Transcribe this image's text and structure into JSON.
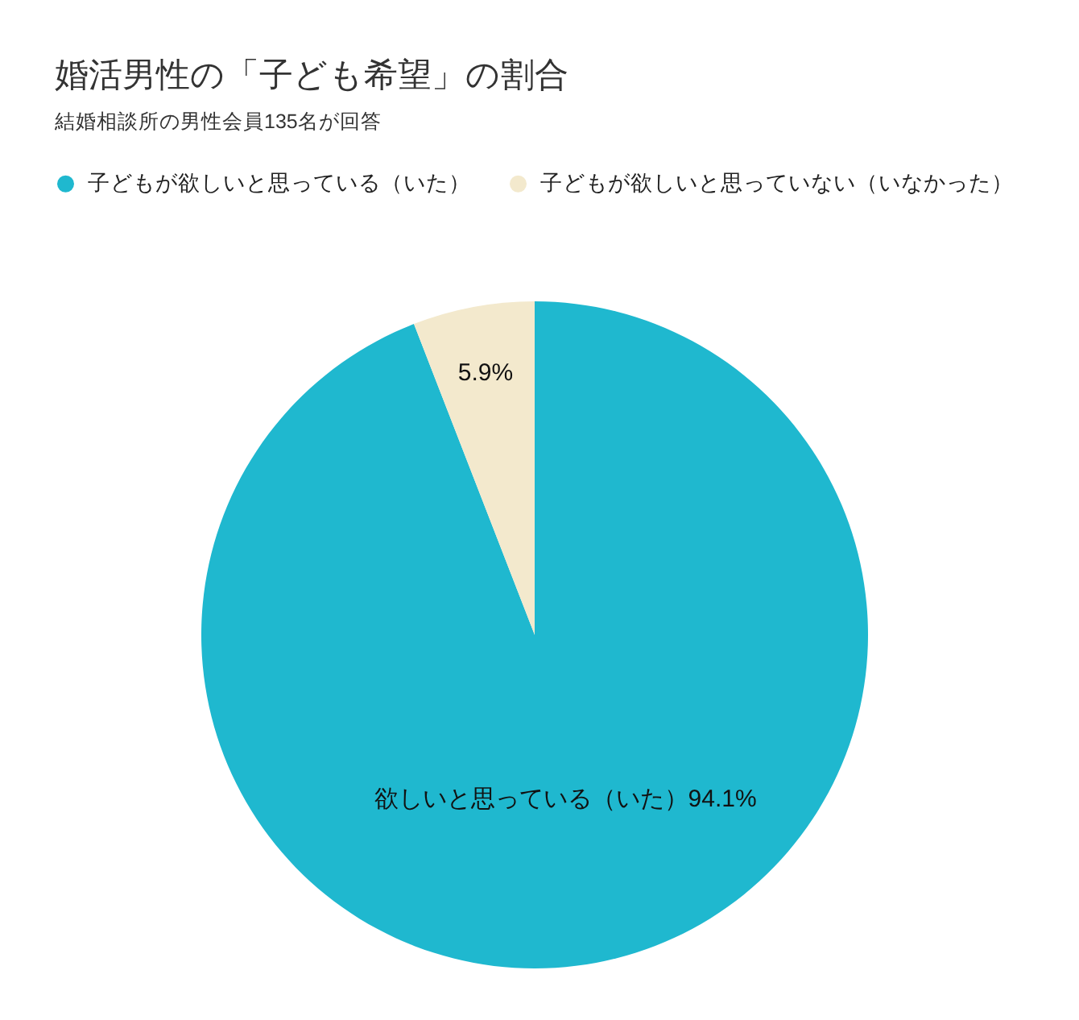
{
  "chart_data": {
    "type": "pie",
    "title": "婚活男性の「子ども希望」の割合",
    "subtitle": "結婚相談所の男性会員135名が回答",
    "categories": [
      "子どもが欲しいと思っている（いた）",
      "子どもが欲しいと思っていない（いなかった）"
    ],
    "values": [
      94.1,
      5.9
    ],
    "colors": [
      "#1fb8cf",
      "#f3e9cd"
    ],
    "value_labels": [
      "欲しいと思っている（いた）94.1%",
      "5.9%"
    ],
    "legend": "top left"
  }
}
